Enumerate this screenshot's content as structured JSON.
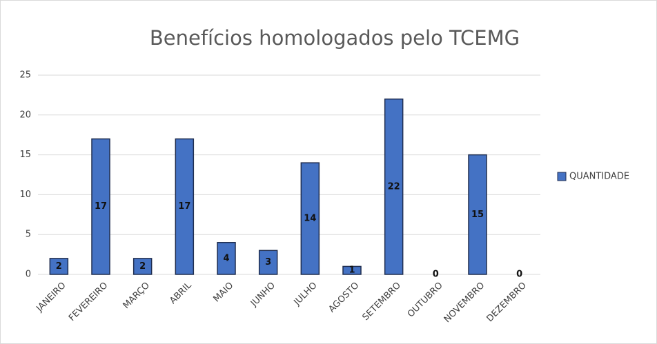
{
  "chart_data": {
    "type": "bar",
    "title": "Benefícios homologados pelo TCEMG",
    "categories": [
      "JANEIRO",
      "FEVEREIRO",
      "MARÇO",
      "ABRIL",
      "MAIO",
      "JUNHO",
      "JULHO",
      "AGOSTO",
      "SETEMBRO",
      "OUTUBRO",
      "NOVEMBRO",
      "DEZEMBRO"
    ],
    "series": [
      {
        "name": "QUANTIDADE",
        "color": "#4472c4",
        "values": [
          2,
          17,
          2,
          17,
          4,
          3,
          14,
          1,
          22,
          0,
          15,
          0
        ]
      }
    ],
    "ylim": [
      0,
      25
    ],
    "yticks": [
      0,
      5,
      10,
      15,
      20,
      25
    ],
    "grid": true,
    "legend": "right"
  }
}
